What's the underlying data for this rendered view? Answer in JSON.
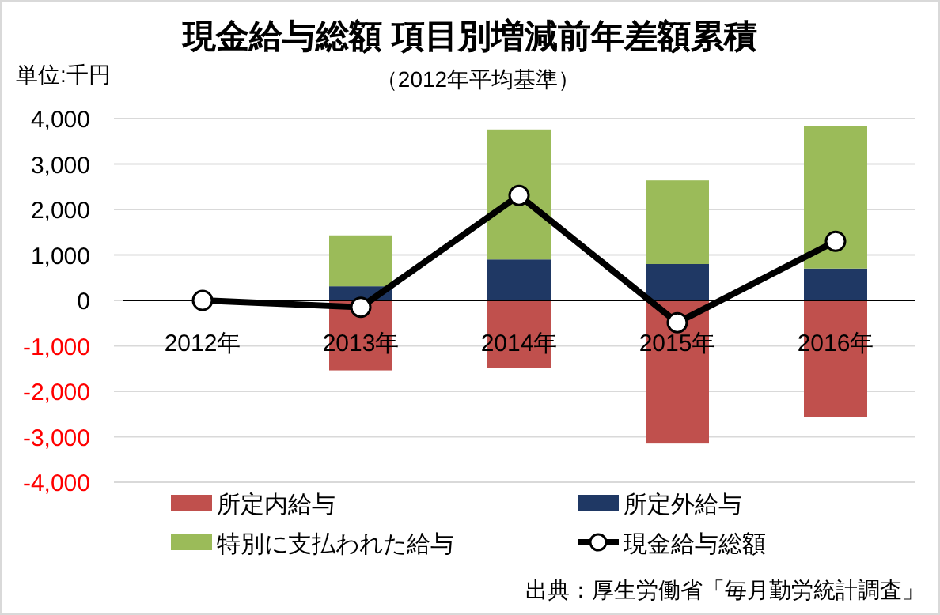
{
  "chart_data": {
    "type": "bar",
    "stacked": true,
    "title": "現金給与総額 項目別増減前年差額累積",
    "subtitle": "（2012年平均基準）",
    "categories": [
      "2012年",
      "2013年",
      "2014年",
      "2015年",
      "2016年"
    ],
    "series": [
      {
        "name": "所定内給与",
        "color": "#c0504d",
        "values": [
          0,
          -1540,
          -1480,
          -3150,
          -2560
        ]
      },
      {
        "name": "所定外給与",
        "color": "#1f3864",
        "values": [
          0,
          310,
          900,
          800,
          700
        ]
      },
      {
        "name": "特別に支払われた給与",
        "color": "#9bbb59",
        "values": [
          0,
          1120,
          2860,
          1840,
          3130
        ]
      },
      {
        "name": "現金給与総額",
        "type": "line",
        "color": "#000000",
        "marker": "circle",
        "values": [
          0,
          -150,
          2310,
          -490,
          1300
        ]
      }
    ],
    "ylim": [
      -4000,
      4000
    ],
    "yticks": [
      {
        "value": -4000,
        "label": "-4,000"
      },
      {
        "value": -3000,
        "label": "-3,000"
      },
      {
        "value": -2000,
        "label": "-2,000"
      },
      {
        "value": -1000,
        "label": "-1,000"
      },
      0,
      {
        "value": 1000,
        "label": "1,000"
      },
      {
        "value": 2000,
        "label": "2,000"
      },
      {
        "value": 3000,
        "label": "3,000"
      },
      {
        "value": 4000,
        "label": "4,000"
      }
    ],
    "grid": "y",
    "legend": "bottom",
    "annotations": [
      "単位:千円",
      "出典：厚生労働省「毎月勤労統計調査」"
    ]
  }
}
